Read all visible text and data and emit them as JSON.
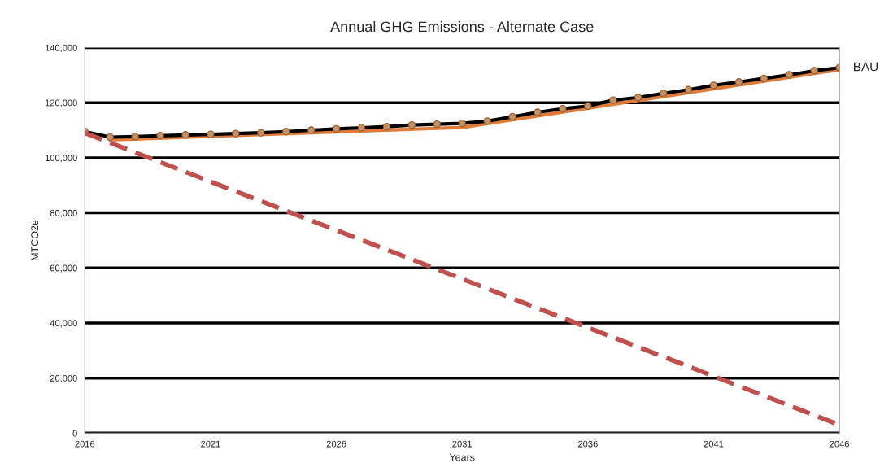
{
  "chart_data": {
    "type": "line",
    "title": "Annual GHG Emissions - Alternate Case",
    "xlabel": "Years",
    "ylabel": "MTCO2e",
    "series": [
      {
        "color": "#e07b39",
        "marker": "none",
        "line_style": "solid",
        "x": [
          2017,
          2031,
          2046
        ],
        "values": [
          106500,
          111000,
          132000
        ]
      },
      {
        "name": "BAU",
        "color": "#000000",
        "marker": "circle",
        "line_style": "solid",
        "x": [
          2016,
          2017,
          2018,
          2019,
          2020,
          2021,
          2022,
          2023,
          2024,
          2025,
          2026,
          2027,
          2028,
          2029,
          2030,
          2031,
          2032,
          2033,
          2034,
          2035,
          2036,
          2037,
          2038,
          2039,
          2040,
          2041,
          2042,
          2043,
          2044,
          2045,
          2046
        ],
        "values": [
          109500,
          107500,
          107700,
          108000,
          108300,
          108500,
          108800,
          109100,
          109500,
          110000,
          110500,
          110900,
          111300,
          111900,
          112200,
          112500,
          113300,
          114900,
          116500,
          117800,
          118800,
          120900,
          121900,
          123400,
          124700,
          126300,
          127500,
          128800,
          130100,
          131600,
          132700
        ]
      },
      {
        "color": "#c0504d",
        "marker": "none",
        "line_style": "dashed",
        "x": [
          2016,
          2046
        ],
        "values": [
          109000,
          3000
        ]
      }
    ],
    "xlim": [
      2016,
      2046
    ],
    "xticks": [
      2016,
      2021,
      2026,
      2031,
      2036,
      2041,
      2046
    ],
    "ylim": [
      0,
      140000
    ],
    "yticks": [
      0,
      {
        "value": 20000,
        "label": "20,000"
      },
      {
        "value": 40000,
        "label": "40,000"
      },
      {
        "value": 60000,
        "label": "60,000"
      },
      {
        "value": 80000,
        "label": "80,000"
      },
      {
        "value": 100000,
        "label": "100,000"
      },
      {
        "value": 120000,
        "label": "120,000"
      },
      {
        "value": 140000,
        "label": "140,000"
      }
    ],
    "grid": "y",
    "legend": false
  }
}
